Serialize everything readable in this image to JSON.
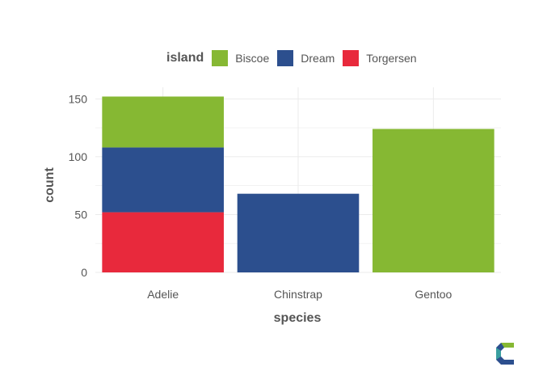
{
  "chart_data": {
    "type": "bar",
    "stacked": true,
    "title": "",
    "xlabel": "species",
    "ylabel": "count",
    "ylim": [
      0,
      160
    ],
    "yticks": [
      0,
      50,
      100,
      150
    ],
    "grid": true,
    "legend_position": "top",
    "legend_title": "island",
    "categories": [
      "Adelie",
      "Chinstrap",
      "Gentoo"
    ],
    "series": [
      {
        "name": "Torgersen",
        "color": "#e8293c",
        "values": [
          52,
          0,
          0
        ]
      },
      {
        "name": "Dream",
        "color": "#2c4f8e",
        "values": [
          56,
          68,
          0
        ]
      },
      {
        "name": "Biscoe",
        "color": "#86b833",
        "values": [
          44,
          0,
          124
        ]
      }
    ],
    "legend_order": [
      "Biscoe",
      "Dream",
      "Torgersen"
    ]
  },
  "logo": {
    "name": "logo-icon"
  }
}
